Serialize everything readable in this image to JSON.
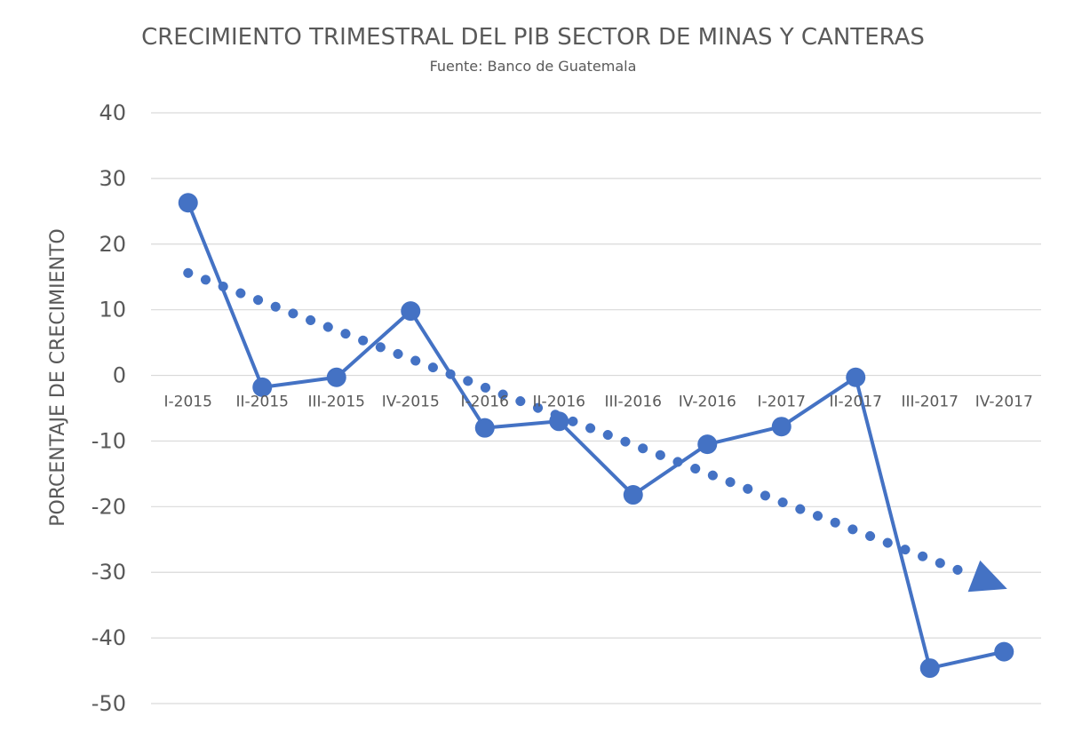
{
  "chart_data": {
    "type": "line",
    "title": "CRECIMIENTO TRIMESTRAL DEL PIB SECTOR DE MINAS Y CANTERAS",
    "subtitle": "Fuente: Banco de Guatemala",
    "ylabel": "PORCENTAJE DE CRECIMIENTO",
    "xlabel": "",
    "ylim": [
      -50,
      40
    ],
    "yticks": [
      40,
      30,
      20,
      10,
      0,
      -10,
      -20,
      -30,
      -40,
      -50
    ],
    "grid": true,
    "categories": [
      "I-2015",
      "II-2015",
      "III-2015",
      "IV-2015",
      "I-2016",
      "II-2016",
      "III-2016",
      "IV-2016",
      "I-2017",
      "II-2017",
      "III-2017",
      "IV-2017"
    ],
    "series": [
      {
        "values": [
          26.3,
          -1.8,
          -0.3,
          9.8,
          -8.0,
          -7.0,
          -18.2,
          -10.5,
          -7.8,
          -0.3,
          -44.6,
          -42.1
        ],
        "color": "#4472C4"
      }
    ],
    "trendline": {
      "type": "linear",
      "style": "dotted",
      "arrow": true,
      "color": "#4472C4",
      "start": 15.6,
      "end": -30.0
    }
  }
}
